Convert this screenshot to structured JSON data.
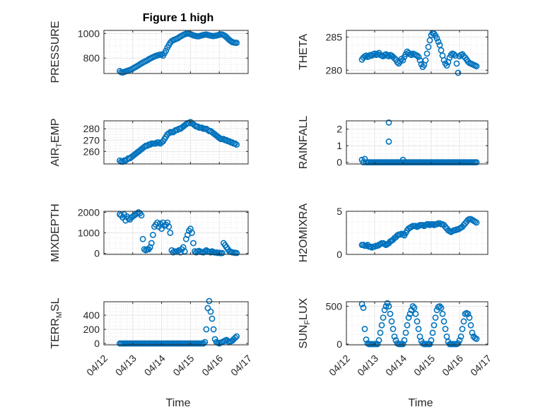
{
  "figure": {
    "title": "Figure 1 high",
    "xlabel": "Time",
    "x_tick_labels": [
      "04/12",
      "04/13",
      "04/14",
      "04/15",
      "04/16",
      "04/17"
    ],
    "marker_color": "#0072BD",
    "grid_color": "#e6e6e6"
  },
  "chart_data": [
    {
      "type": "scatter",
      "ylabel": {
        "main": "PRESSURE"
      },
      "ylim": [
        675,
        1025
      ],
      "yticks": [
        800,
        1000
      ],
      "title": "Figure 1 high",
      "x": [
        0.55,
        0.6,
        0.65,
        0.7,
        0.75,
        0.8,
        0.85,
        0.9,
        0.95,
        1.0,
        1.05,
        1.1,
        1.15,
        1.2,
        1.25,
        1.3,
        1.35,
        1.4,
        1.45,
        1.5,
        1.55,
        1.6,
        1.65,
        1.7,
        1.75,
        1.8,
        1.85,
        1.9,
        1.95,
        2.0,
        2.05,
        2.1,
        2.15,
        2.2,
        2.25,
        2.3,
        2.35,
        2.4,
        2.45,
        2.5,
        2.55,
        2.6,
        2.65,
        2.7,
        2.75,
        2.8,
        2.85,
        2.9,
        2.95,
        3.0,
        3.05,
        3.1,
        3.15,
        3.2,
        3.25,
        3.3,
        3.35,
        3.4,
        3.45,
        3.5,
        3.55,
        3.6,
        3.65,
        3.7,
        3.75,
        3.8,
        3.85,
        3.9,
        3.95,
        4.0,
        4.05,
        4.1,
        4.15,
        4.2,
        4.25,
        4.3,
        4.35,
        4.4,
        4.45,
        4.5,
        4.55,
        4.6
      ],
      "y": [
        695,
        685,
        683,
        688,
        692,
        696,
        700,
        704,
        708,
        715,
        722,
        728,
        735,
        742,
        750,
        757,
        764,
        770,
        776,
        782,
        790,
        796,
        802,
        808,
        813,
        818,
        822,
        825,
        828,
        830,
        820,
        840,
        860,
        885,
        905,
        925,
        938,
        945,
        950,
        955,
        960,
        968,
        975,
        982,
        988,
        993,
        998,
        1000,
        998,
        995,
        990,
        985,
        982,
        979,
        977,
        978,
        982,
        985,
        988,
        990,
        992,
        988,
        985,
        983,
        980,
        979,
        981,
        983,
        986,
        990,
        993,
        992,
        987,
        980,
        970,
        958,
        947,
        938,
        930,
        927,
        925,
        924
      ]
    },
    {
      "type": "scatter",
      "ylabel": {
        "main": "THETA"
      },
      "ylim": [
        279.5,
        286
      ],
      "yticks": [
        280,
        285
      ],
      "x": [
        0.55,
        0.6,
        0.65,
        0.7,
        0.75,
        0.8,
        0.85,
        0.9,
        0.95,
        1.0,
        1.05,
        1.1,
        1.15,
        1.2,
        1.25,
        1.3,
        1.35,
        1.4,
        1.45,
        1.5,
        1.55,
        1.6,
        1.65,
        1.7,
        1.75,
        1.8,
        1.85,
        1.9,
        1.95,
        2.0,
        2.05,
        2.1,
        2.15,
        2.2,
        2.25,
        2.3,
        2.35,
        2.4,
        2.45,
        2.5,
        2.55,
        2.6,
        2.65,
        2.7,
        2.75,
        2.8,
        2.85,
        2.9,
        2.95,
        3.0,
        3.05,
        3.1,
        3.15,
        3.2,
        3.25,
        3.3,
        3.35,
        3.4,
        3.45,
        3.5,
        3.55,
        3.6,
        3.65,
        3.7,
        3.75,
        3.8,
        3.85,
        3.9,
        3.95,
        4.0,
        4.05,
        4.1,
        4.15,
        4.2,
        4.25,
        4.3,
        4.35,
        4.4,
        4.45,
        4.5,
        4.55,
        4.6
      ],
      "y": [
        281.6,
        281.9,
        282.1,
        282.2,
        282.0,
        282.1,
        282.3,
        282.2,
        282.4,
        282.5,
        282.3,
        282.4,
        282.6,
        282.3,
        282.2,
        282.1,
        282.3,
        282.4,
        282.2,
        282.1,
        282.3,
        282.2,
        282.0,
        281.8,
        281.6,
        281.2,
        281.0,
        281.3,
        281.7,
        281.5,
        282.0,
        282.4,
        282.8,
        282.6,
        282.4,
        282.3,
        282.5,
        282.4,
        282.3,
        282.2,
        282.0,
        281.5,
        280.9,
        280.5,
        280.8,
        281.5,
        282.5,
        283.5,
        284.5,
        285.3,
        285.6,
        285.5,
        285.2,
        284.8,
        284.3,
        283.8,
        283.0,
        282.2,
        281.5,
        281.0,
        280.7,
        281.2,
        281.9,
        282.3,
        282.5,
        282.4,
        282.2,
        281.0,
        279.6,
        282.1,
        282.3,
        282.4,
        282.1,
        281.9,
        281.6,
        281.3,
        281.1,
        281.0,
        280.9,
        280.8,
        280.7,
        280.6
      ]
    },
    {
      "type": "scatter",
      "ylabel": {
        "main": "AIR",
        "sub": "T",
        "rest": "EMP"
      },
      "ylim": [
        249,
        287
      ],
      "yticks": [
        260,
        270,
        280
      ],
      "x": [
        0.55,
        0.6,
        0.65,
        0.7,
        0.75,
        0.8,
        0.85,
        0.9,
        0.95,
        1.0,
        1.05,
        1.1,
        1.15,
        1.2,
        1.25,
        1.3,
        1.35,
        1.4,
        1.45,
        1.5,
        1.55,
        1.6,
        1.65,
        1.7,
        1.75,
        1.8,
        1.85,
        1.9,
        1.95,
        2.0,
        2.05,
        2.1,
        2.15,
        2.2,
        2.25,
        2.3,
        2.35,
        2.4,
        2.45,
        2.5,
        2.55,
        2.6,
        2.65,
        2.7,
        2.75,
        2.8,
        2.85,
        2.9,
        2.95,
        3.0,
        3.05,
        3.1,
        3.15,
        3.2,
        3.25,
        3.3,
        3.35,
        3.4,
        3.45,
        3.5,
        3.55,
        3.6,
        3.65,
        3.7,
        3.75,
        3.8,
        3.85,
        3.9,
        3.95,
        4.0,
        4.05,
        4.1,
        4.15,
        4.2,
        4.25,
        4.3,
        4.35,
        4.4,
        4.45,
        4.5,
        4.55,
        4.6
      ],
      "y": [
        252,
        251,
        251,
        252,
        252,
        253,
        254,
        254,
        255,
        256,
        257,
        258,
        259,
        260,
        261,
        262,
        263,
        264,
        265,
        265,
        266,
        266,
        267,
        267,
        267,
        267,
        268,
        268,
        267,
        268,
        269,
        271,
        273,
        275,
        276,
        277,
        277,
        277,
        278,
        279,
        279,
        280,
        280,
        281,
        282,
        283,
        284,
        285,
        285,
        286,
        285,
        284,
        283,
        282,
        282,
        281,
        281,
        281,
        280,
        280,
        280,
        279,
        278,
        278,
        277,
        276,
        275,
        274,
        273,
        272,
        271,
        271,
        271,
        270,
        270,
        269,
        269,
        268,
        268,
        267,
        267,
        266
      ]
    },
    {
      "type": "scatter",
      "ylabel": {
        "main": "RAINFALL"
      },
      "ylim": [
        -0.1,
        2.5
      ],
      "yticks": [
        0,
        1,
        2
      ],
      "x": [
        0.55,
        0.6,
        0.65,
        0.7,
        0.75,
        0.8,
        0.85,
        0.9,
        0.95,
        1.0,
        1.05,
        1.1,
        1.15,
        1.2,
        1.25,
        1.3,
        1.35,
        1.4,
        1.45,
        1.5,
        1.55,
        1.6,
        1.65,
        1.7,
        1.75,
        1.8,
        1.85,
        1.9,
        1.95,
        2.0,
        2.05,
        2.1,
        2.15,
        2.2,
        2.25,
        2.3,
        2.35,
        2.4,
        2.45,
        2.5,
        2.55,
        2.6,
        2.65,
        2.7,
        2.75,
        2.8,
        2.85,
        2.9,
        2.95,
        3.0,
        3.05,
        3.1,
        3.15,
        3.2,
        3.25,
        3.3,
        3.35,
        3.4,
        3.45,
        3.5,
        3.55,
        3.6,
        3.65,
        3.7,
        3.75,
        3.8,
        3.85,
        3.9,
        3.95,
        4.0,
        4.05,
        4.1,
        4.15,
        4.2,
        4.25,
        4.3,
        4.35,
        4.4,
        4.45,
        4.5,
        4.55,
        4.6,
        1.5,
        1.5,
        2.0
      ],
      "y": [
        0.15,
        0.0,
        0.2,
        0.0,
        0.0,
        0.0,
        0.0,
        0.0,
        0.0,
        0.0,
        0.0,
        0.0,
        0.0,
        0.0,
        0.0,
        0.0,
        0.0,
        0.0,
        0.0,
        0.0,
        0.0,
        0.0,
        0.0,
        0.0,
        0.0,
        0.0,
        0.0,
        0.0,
        0.0,
        0.0,
        0.0,
        0.0,
        0.0,
        0.0,
        0.0,
        0.0,
        0.0,
        0.0,
        0.0,
        0.0,
        0.0,
        0.0,
        0.0,
        0.0,
        0.0,
        0.0,
        0.0,
        0.0,
        0.0,
        0.0,
        0.0,
        0.0,
        0.0,
        0.0,
        0.0,
        0.0,
        0.0,
        0.0,
        0.0,
        0.0,
        0.0,
        0.0,
        0.0,
        0.0,
        0.0,
        0.0,
        0.0,
        0.0,
        0.0,
        0.0,
        0.0,
        0.0,
        0.0,
        0.0,
        0.0,
        0.0,
        0.0,
        0.0,
        0.0,
        0.0,
        0.0,
        0.0,
        2.4,
        1.25,
        0.15
      ]
    },
    {
      "type": "scatter",
      "ylabel": {
        "main": "MIXDEPTH"
      },
      "ylim": [
        -50,
        2050
      ],
      "yticks": [
        0,
        1000,
        2000
      ],
      "x": [
        0.55,
        0.6,
        0.65,
        0.7,
        0.75,
        0.8,
        0.85,
        0.9,
        0.95,
        1.0,
        1.05,
        1.1,
        1.15,
        1.2,
        1.25,
        1.3,
        1.35,
        1.4,
        1.45,
        1.5,
        1.55,
        1.6,
        1.65,
        1.7,
        1.75,
        1.8,
        1.85,
        1.9,
        1.95,
        2.0,
        2.05,
        2.1,
        2.15,
        2.2,
        2.25,
        2.3,
        2.35,
        2.4,
        2.45,
        2.5,
        2.55,
        2.6,
        2.65,
        2.7,
        2.75,
        2.8,
        2.85,
        2.9,
        2.95,
        3.0,
        3.05,
        3.1,
        3.15,
        3.2,
        3.25,
        3.3,
        3.35,
        3.4,
        3.45,
        3.5,
        3.55,
        3.6,
        3.65,
        3.7,
        3.75,
        3.8,
        3.85,
        3.9,
        3.95,
        4.0,
        4.05,
        4.1,
        4.15,
        4.2,
        4.25,
        4.3,
        4.35,
        4.4,
        4.45,
        4.5,
        4.55,
        4.6
      ],
      "y": [
        1900,
        1850,
        1750,
        1900,
        1600,
        1800,
        1700,
        1650,
        1750,
        1800,
        1850,
        1900,
        1950,
        2000,
        1950,
        1850,
        700,
        200,
        150,
        200,
        200,
        300,
        500,
        900,
        1300,
        1400,
        1500,
        1300,
        1450,
        1200,
        1500,
        1350,
        1400,
        1500,
        1300,
        1000,
        150,
        50,
        100,
        80,
        100,
        150,
        50,
        200,
        300,
        100,
        700,
        900,
        1100,
        1200,
        1000,
        500,
        100,
        50,
        100,
        120,
        80,
        60,
        50,
        100,
        150,
        100,
        80,
        50,
        100,
        60,
        40,
        50,
        20,
        30,
        10,
        20,
        500,
        400,
        300,
        200,
        100,
        80,
        50,
        40,
        30,
        20
      ]
    },
    {
      "type": "scatter",
      "ylabel": {
        "main": "H2OMIXRA"
      },
      "ylim": [
        0,
        5
      ],
      "yticks": [
        0,
        5
      ],
      "x": [
        0.55,
        0.6,
        0.65,
        0.7,
        0.75,
        0.8,
        0.85,
        0.9,
        0.95,
        1.0,
        1.05,
        1.1,
        1.15,
        1.2,
        1.25,
        1.3,
        1.35,
        1.4,
        1.45,
        1.5,
        1.55,
        1.6,
        1.65,
        1.7,
        1.75,
        1.8,
        1.85,
        1.9,
        1.95,
        2.0,
        2.05,
        2.1,
        2.15,
        2.2,
        2.25,
        2.3,
        2.35,
        2.4,
        2.45,
        2.5,
        2.55,
        2.6,
        2.65,
        2.7,
        2.75,
        2.8,
        2.85,
        2.9,
        2.95,
        3.0,
        3.05,
        3.1,
        3.15,
        3.2,
        3.25,
        3.3,
        3.35,
        3.4,
        3.45,
        3.5,
        3.55,
        3.6,
        3.65,
        3.7,
        3.75,
        3.8,
        3.85,
        3.9,
        3.95,
        4.0,
        4.05,
        4.1,
        4.15,
        4.2,
        4.25,
        4.3,
        4.35,
        4.4,
        4.45,
        4.5,
        4.55,
        4.6
      ],
      "y": [
        1.1,
        1.1,
        1.0,
        1.0,
        1.1,
        0.9,
        0.9,
        0.8,
        0.9,
        0.9,
        1.0,
        1.0,
        1.1,
        1.2,
        1.3,
        1.3,
        1.2,
        1.1,
        1.2,
        1.3,
        1.5,
        1.6,
        1.7,
        1.9,
        2.0,
        2.2,
        2.3,
        2.3,
        2.4,
        2.3,
        2.2,
        2.5,
        2.8,
        3.0,
        3.1,
        3.2,
        3.3,
        3.3,
        3.3,
        3.2,
        3.3,
        3.4,
        3.4,
        3.4,
        3.3,
        3.4,
        3.5,
        3.5,
        3.4,
        3.5,
        3.5,
        3.4,
        3.5,
        3.5,
        3.6,
        3.6,
        3.5,
        3.5,
        3.4,
        3.2,
        3.0,
        2.8,
        2.7,
        2.6,
        2.7,
        2.8,
        2.8,
        2.9,
        2.9,
        3.0,
        3.1,
        3.2,
        3.4,
        3.6,
        3.8,
        4.0,
        4.1,
        4.1,
        4.0,
        3.9,
        3.8,
        3.7
      ]
    },
    {
      "type": "scatter",
      "ylabel": {
        "main": "TERR",
        "sub": "M",
        "rest": "SL"
      },
      "ylim": [
        -20,
        590
      ],
      "yticks": [
        0,
        200,
        400
      ],
      "x": [
        0.55,
        0.6,
        0.65,
        0.7,
        0.75,
        0.8,
        0.85,
        0.9,
        0.95,
        1.0,
        1.05,
        1.1,
        1.15,
        1.2,
        1.25,
        1.3,
        1.35,
        1.4,
        1.45,
        1.5,
        1.55,
        1.6,
        1.65,
        1.7,
        1.75,
        1.8,
        1.85,
        1.9,
        1.95,
        2.0,
        2.05,
        2.1,
        2.15,
        2.2,
        2.25,
        2.3,
        2.35,
        2.4,
        2.45,
        2.5,
        2.55,
        2.6,
        2.65,
        2.7,
        2.75,
        2.8,
        2.85,
        2.9,
        2.95,
        3.0,
        3.05,
        3.1,
        3.15,
        3.2,
        3.25,
        3.3,
        3.35,
        3.4,
        3.45,
        3.5,
        3.55,
        3.6,
        3.65,
        3.7,
        3.75,
        3.8,
        3.85,
        3.9,
        3.95,
        4.0,
        4.05,
        4.1,
        4.15,
        4.2,
        4.25,
        4.3,
        4.35,
        4.4,
        4.45,
        4.5,
        4.55,
        4.6
      ],
      "y": [
        0,
        0,
        0,
        0,
        0,
        0,
        0,
        0,
        0,
        0,
        0,
        0,
        0,
        0,
        0,
        0,
        0,
        0,
        0,
        0,
        0,
        0,
        0,
        0,
        0,
        0,
        0,
        0,
        0,
        0,
        0,
        0,
        0,
        0,
        0,
        0,
        0,
        0,
        0,
        0,
        0,
        0,
        0,
        0,
        0,
        0,
        0,
        0,
        0,
        0,
        0,
        0,
        0,
        0,
        0,
        0,
        0,
        0,
        0,
        20,
        200,
        500,
        600,
        450,
        350,
        200,
        60,
        20,
        10,
        0,
        10,
        20,
        30,
        40,
        50,
        30,
        20,
        30,
        40,
        60,
        80,
        100
      ]
    },
    {
      "type": "scatter",
      "ylabel": {
        "main": "SUN",
        "sub": "F",
        "rest": "LUX"
      },
      "ylim": [
        -10,
        560
      ],
      "yticks": [
        0,
        500
      ],
      "x": [
        0.55,
        0.6,
        0.65,
        0.7,
        0.75,
        0.8,
        0.85,
        0.9,
        0.95,
        1.0,
        1.05,
        1.1,
        1.15,
        1.2,
        1.25,
        1.3,
        1.35,
        1.4,
        1.45,
        1.5,
        1.55,
        1.6,
        1.65,
        1.7,
        1.75,
        1.8,
        1.85,
        1.9,
        1.95,
        2.0,
        2.05,
        2.1,
        2.15,
        2.2,
        2.25,
        2.3,
        2.35,
        2.4,
        2.45,
        2.5,
        2.55,
        2.6,
        2.65,
        2.7,
        2.75,
        2.8,
        2.85,
        2.9,
        2.95,
        3.0,
        3.05,
        3.1,
        3.15,
        3.2,
        3.25,
        3.3,
        3.35,
        3.4,
        3.45,
        3.5,
        3.55,
        3.6,
        3.65,
        3.7,
        3.75,
        3.8,
        3.85,
        3.9,
        3.95,
        4.0,
        4.05,
        4.1,
        4.15,
        4.2,
        4.25,
        4.3,
        4.35,
        4.4,
        4.45,
        4.5,
        4.55,
        4.6
      ],
      "y": [
        530,
        480,
        200,
        60,
        10,
        0,
        0,
        0,
        0,
        0,
        0,
        0,
        50,
        150,
        250,
        350,
        450,
        500,
        540,
        500,
        400,
        300,
        200,
        100,
        50,
        10,
        0,
        0,
        0,
        0,
        50,
        150,
        250,
        350,
        400,
        450,
        500,
        480,
        400,
        300,
        200,
        100,
        40,
        10,
        0,
        0,
        0,
        0,
        0,
        50,
        150,
        250,
        350,
        450,
        490,
        500,
        480,
        400,
        300,
        200,
        100,
        30,
        0,
        0,
        0,
        0,
        0,
        0,
        10,
        50,
        100,
        200,
        300,
        400,
        410,
        400,
        350,
        250,
        150,
        100,
        80,
        70
      ]
    }
  ]
}
